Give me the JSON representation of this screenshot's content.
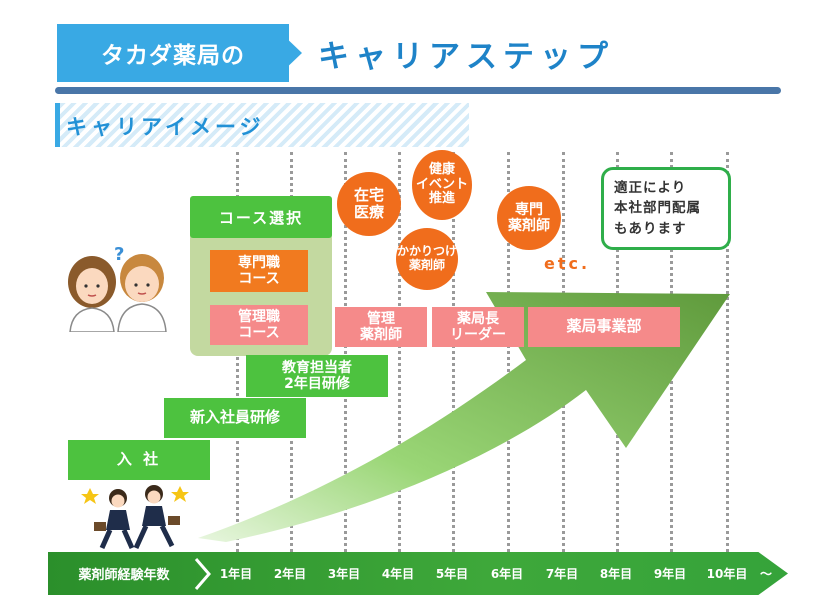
{
  "header": {
    "tag": "タカダ薬局の",
    "title": "キャリアステップ"
  },
  "subheading": "キャリアイメージ",
  "timeline": {
    "label": "薬剤師経験年数",
    "years": [
      "1年目",
      "2年目",
      "3年目",
      "4年目",
      "5年目",
      "6年目",
      "7年目",
      "8年目",
      "9年目",
      "10年目",
      "～"
    ]
  },
  "steps": {
    "join": "入 社",
    "new_training": "新入社員研修",
    "educator": "教育担当者\n2年目研修"
  },
  "course": {
    "head": "コース選択",
    "specialist": "専門職\nコース",
    "management": "管理職\nコース"
  },
  "roles": {
    "manager_pharmacist": "管理\n薬剤師",
    "store_leader": "薬局長\nリーダー",
    "division": "薬局事業部"
  },
  "bubbles": {
    "home_care": "在宅\n医療",
    "health_event": "健康\nイベント\n推進",
    "family_pharmacist": "かかりつけ\n薬剤師",
    "specialist_pharmacist": "専門\n薬剤師"
  },
  "etc": "etc.",
  "note": "適正により\n本社部門配属\nもあります",
  "colors": {
    "header_blue": "#39a9e4",
    "step_green": "#4dc23f",
    "orange": "#f06d1c",
    "pink": "#f58a8a",
    "timeline_green": "#2b8f2b"
  }
}
